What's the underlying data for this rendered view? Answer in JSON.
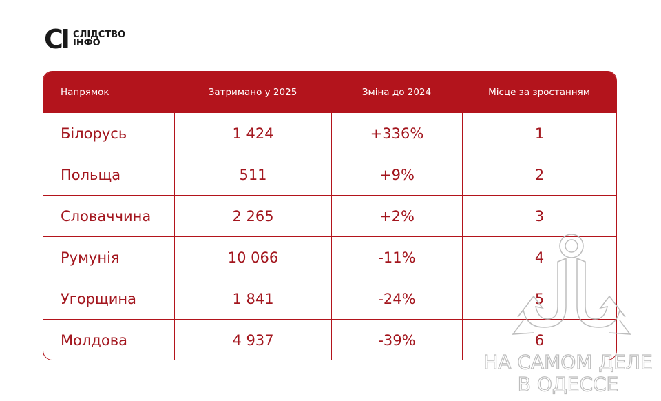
{
  "logo": {
    "mark": "CI",
    "line1": "СЛІДСТВО",
    "line2": "ІНФО"
  },
  "table": {
    "headers": [
      "Напрямок",
      "Затримано у 2025",
      "Зміна до 2024",
      "Місце за зростанням"
    ],
    "rows": [
      [
        "Білорусь",
        "1 424",
        "+336%",
        "1"
      ],
      [
        "Польща",
        "511",
        "+9%",
        "2"
      ],
      [
        "Словаччина",
        "2 265",
        "+2%",
        "3"
      ],
      [
        "Румунія",
        "10 066",
        "-11%",
        "4"
      ],
      [
        "Угорщина",
        "1 841",
        "-24%",
        "5"
      ],
      [
        "Молдова",
        "4 937",
        "-39%",
        "6"
      ]
    ]
  },
  "watermark": {
    "line1": "НА САМОМ ДЕЛЕ",
    "line2": "В ОДЕССЕ"
  },
  "colors": {
    "accent": "#b3141c",
    "text": "#a3161e"
  }
}
